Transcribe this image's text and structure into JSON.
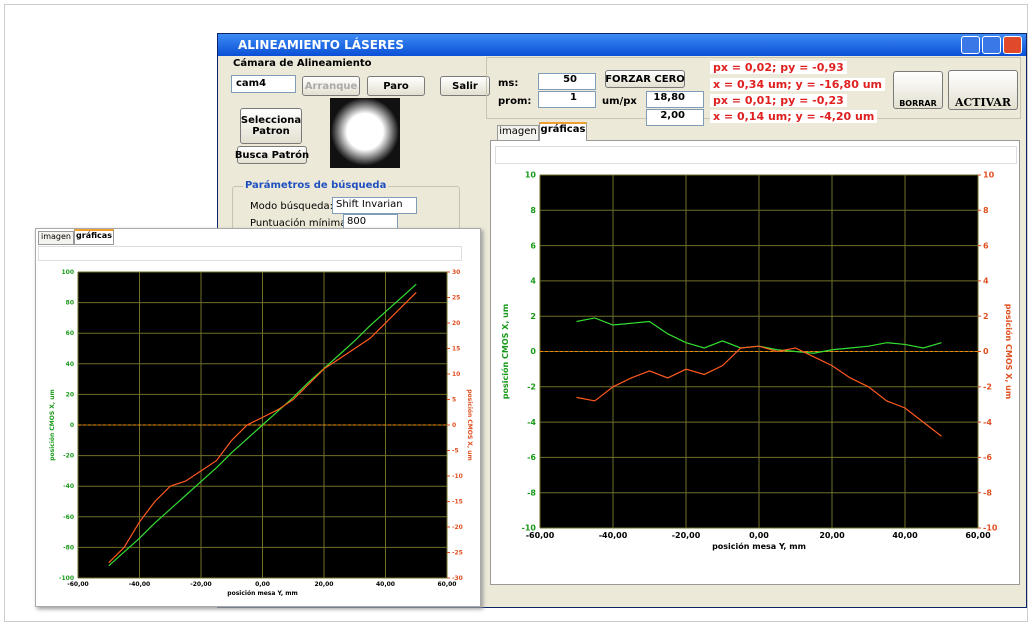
{
  "window": {
    "title": "ALINEAMIENTO LÁSERES"
  },
  "left_panel": {
    "section": "Cámara de Alineamiento",
    "camera": "cam4",
    "buttons": [
      "Arranque",
      "Paro",
      "Salir"
    ],
    "select_pattern": "Selecciona Patron",
    "search_pattern": "Busca Patrón",
    "group": "Parámetros de búsqueda",
    "mode_label": "Modo búsqueda:",
    "mode_value": "Shift Invarian",
    "score_label": "Puntuación mínima:",
    "score_value": "800"
  },
  "controls": {
    "ms_label": "ms:",
    "ms_value": "50",
    "prom_label": "prom:",
    "prom_value": "1",
    "force_zero": "FORZAR CERO",
    "umpx_label": "um/px",
    "umpx_x": "18,80",
    "umpx_y": "2,00",
    "readouts": [
      "px = 0,02; py = -0,93",
      "x = 0,34 um; y = -16,80 um",
      "px = 0,01; py = -0,23",
      "x = 0,14 um; y = -4,20 um"
    ],
    "clear": "BORRAR",
    "activate": "ACTIVAR"
  },
  "tabs": [
    "imagen",
    "gráficas"
  ],
  "charts": [
    {
      "type": "line",
      "xlabel": "posición mesa Y, mm",
      "ylabel": "posición CMOS X, um",
      "y2label": "posición CMOS X, um",
      "x": [
        -50,
        -45,
        -40,
        -35,
        -30,
        -25,
        -20,
        -15,
        -10,
        -5,
        0,
        5,
        10,
        15,
        20,
        25,
        30,
        35,
        40,
        45,
        50
      ],
      "series": [
        {
          "color": "#33dd33",
          "values": [
            1.7,
            1.9,
            1.5,
            1.6,
            1.7,
            1.0,
            0.5,
            0.2,
            0.6,
            0.2,
            0.3,
            0.1,
            0.0,
            -0.1,
            0.1,
            0.2,
            0.3,
            0.5,
            0.4,
            0.2,
            0.5
          ]
        },
        {
          "color": "#ff5a1f",
          "axis": "y2",
          "values": [
            -2.6,
            -2.8,
            -2.0,
            -1.5,
            -1.1,
            -1.5,
            -1.0,
            -1.3,
            -0.8,
            0.2,
            0.3,
            0.0,
            0.2,
            -0.3,
            -0.8,
            -1.5,
            -2.0,
            -2.8,
            -3.2,
            -4.0,
            -4.8
          ]
        }
      ],
      "xlim": [
        -60,
        60
      ],
      "xticks": [
        {
          "value": -60,
          "label": "-60,00"
        },
        {
          "value": -40,
          "label": "-40,00"
        },
        {
          "value": -20,
          "label": "-20,00"
        },
        {
          "value": 0,
          "label": "0,00"
        },
        {
          "value": 20,
          "label": "20,00"
        },
        {
          "value": 40,
          "label": "40,00"
        },
        {
          "value": 60,
          "label": "60,00"
        }
      ],
      "ylim": [
        -10,
        10
      ],
      "yticks": [
        -10,
        -8,
        -6,
        -4,
        -2,
        0,
        2,
        4,
        6,
        8,
        10
      ],
      "y2lim": [
        -10,
        10
      ],
      "y2ticks": [
        -10,
        -8,
        -6,
        -4,
        -2,
        0,
        2,
        4,
        6,
        8,
        10
      ],
      "grid": true
    },
    {
      "type": "line",
      "xlabel": "posición mesa Y, mm",
      "ylabel": "posición CMOS X, um",
      "y2label": "posición CMOS X, um",
      "x": [
        -50,
        -45,
        -40,
        -35,
        -30,
        -25,
        -20,
        -15,
        -10,
        -5,
        0,
        5,
        10,
        15,
        20,
        25,
        30,
        35,
        40,
        45,
        50
      ],
      "series": [
        {
          "color": "#33dd33",
          "values": [
            -92,
            -83,
            -74,
            -64,
            -55,
            -46,
            -37,
            -28,
            -18,
            -9,
            0,
            9,
            18,
            28,
            37,
            46,
            55,
            65,
            74,
            83,
            92
          ]
        },
        {
          "color": "#ff5a1f",
          "axis": "y2",
          "values": [
            -27,
            -24,
            -19,
            -15,
            -12,
            -11,
            -9,
            -7,
            -3,
            0,
            1.5,
            3,
            5,
            8,
            11,
            13,
            15,
            17,
            20,
            23,
            26
          ]
        }
      ],
      "xlim": [
        -60,
        60
      ],
      "xticks": [
        {
          "value": -60,
          "label": "-60,00"
        },
        {
          "value": -40,
          "label": "-40,00"
        },
        {
          "value": -20,
          "label": "-20,00"
        },
        {
          "value": 0,
          "label": "0,00"
        },
        {
          "value": 20,
          "label": "20,00"
        },
        {
          "value": 40,
          "label": "40,00"
        },
        {
          "value": 60,
          "label": "60,00"
        }
      ],
      "ylim": [
        -100,
        100
      ],
      "yticks": [
        -100,
        -80,
        -60,
        -40,
        -20,
        0,
        20,
        40,
        60,
        80,
        100
      ],
      "y2lim": [
        -30,
        30
      ],
      "y2ticks": [
        -30,
        -25,
        -20,
        -15,
        -10,
        -5,
        0,
        5,
        10,
        15,
        20,
        25,
        30
      ],
      "grid": true
    }
  ]
}
